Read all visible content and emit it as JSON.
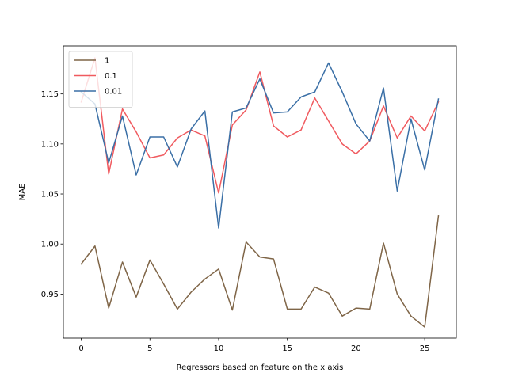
{
  "chart_data": {
    "type": "line",
    "xlabel": "Regressors based on feature on the x axis",
    "ylabel": "MAE",
    "xlim": [
      -1.3,
      27.3
    ],
    "ylim": [
      0.906,
      1.198
    ],
    "xticks": [
      0,
      5,
      10,
      15,
      20,
      25
    ],
    "yticks": [
      0.95,
      1.0,
      1.05,
      1.1,
      1.15
    ],
    "ytick_labels": [
      "0.95",
      "1.00",
      "1.05",
      "1.10",
      "1.15"
    ],
    "legend_position": "top-left",
    "x": [
      0,
      1,
      2,
      3,
      4,
      5,
      6,
      7,
      8,
      9,
      10,
      11,
      12,
      13,
      14,
      15,
      16,
      17,
      18,
      19,
      20,
      21,
      22,
      23,
      24,
      25,
      26
    ],
    "series": [
      {
        "name": "1",
        "color": "#7f6547",
        "values": [
          0.98,
          0.998,
          0.936,
          0.982,
          0.947,
          0.984,
          0.96,
          0.935,
          0.952,
          0.965,
          0.975,
          0.934,
          1.002,
          0.987,
          0.985,
          0.935,
          0.935,
          0.957,
          0.951,
          0.928,
          0.936,
          0.935,
          1.001,
          0.95,
          0.928,
          0.917,
          1.028
        ]
      },
      {
        "name": "0.1",
        "color": "#f05a5f",
        "values": [
          1.142,
          1.186,
          1.07,
          1.135,
          1.112,
          1.086,
          1.089,
          1.106,
          1.114,
          1.108,
          1.051,
          1.119,
          1.134,
          1.172,
          1.118,
          1.107,
          1.114,
          1.146,
          1.123,
          1.1,
          1.09,
          1.103,
          1.138,
          1.106,
          1.128,
          1.113,
          1.142
        ]
      },
      {
        "name": "0.01",
        "color": "#3a6fa6",
        "values": [
          1.152,
          1.14,
          1.081,
          1.128,
          1.069,
          1.107,
          1.107,
          1.077,
          1.115,
          1.133,
          1.016,
          1.132,
          1.136,
          1.165,
          1.131,
          1.132,
          1.147,
          1.152,
          1.181,
          1.152,
          1.12,
          1.103,
          1.156,
          1.053,
          1.125,
          1.074,
          1.145
        ]
      }
    ]
  }
}
